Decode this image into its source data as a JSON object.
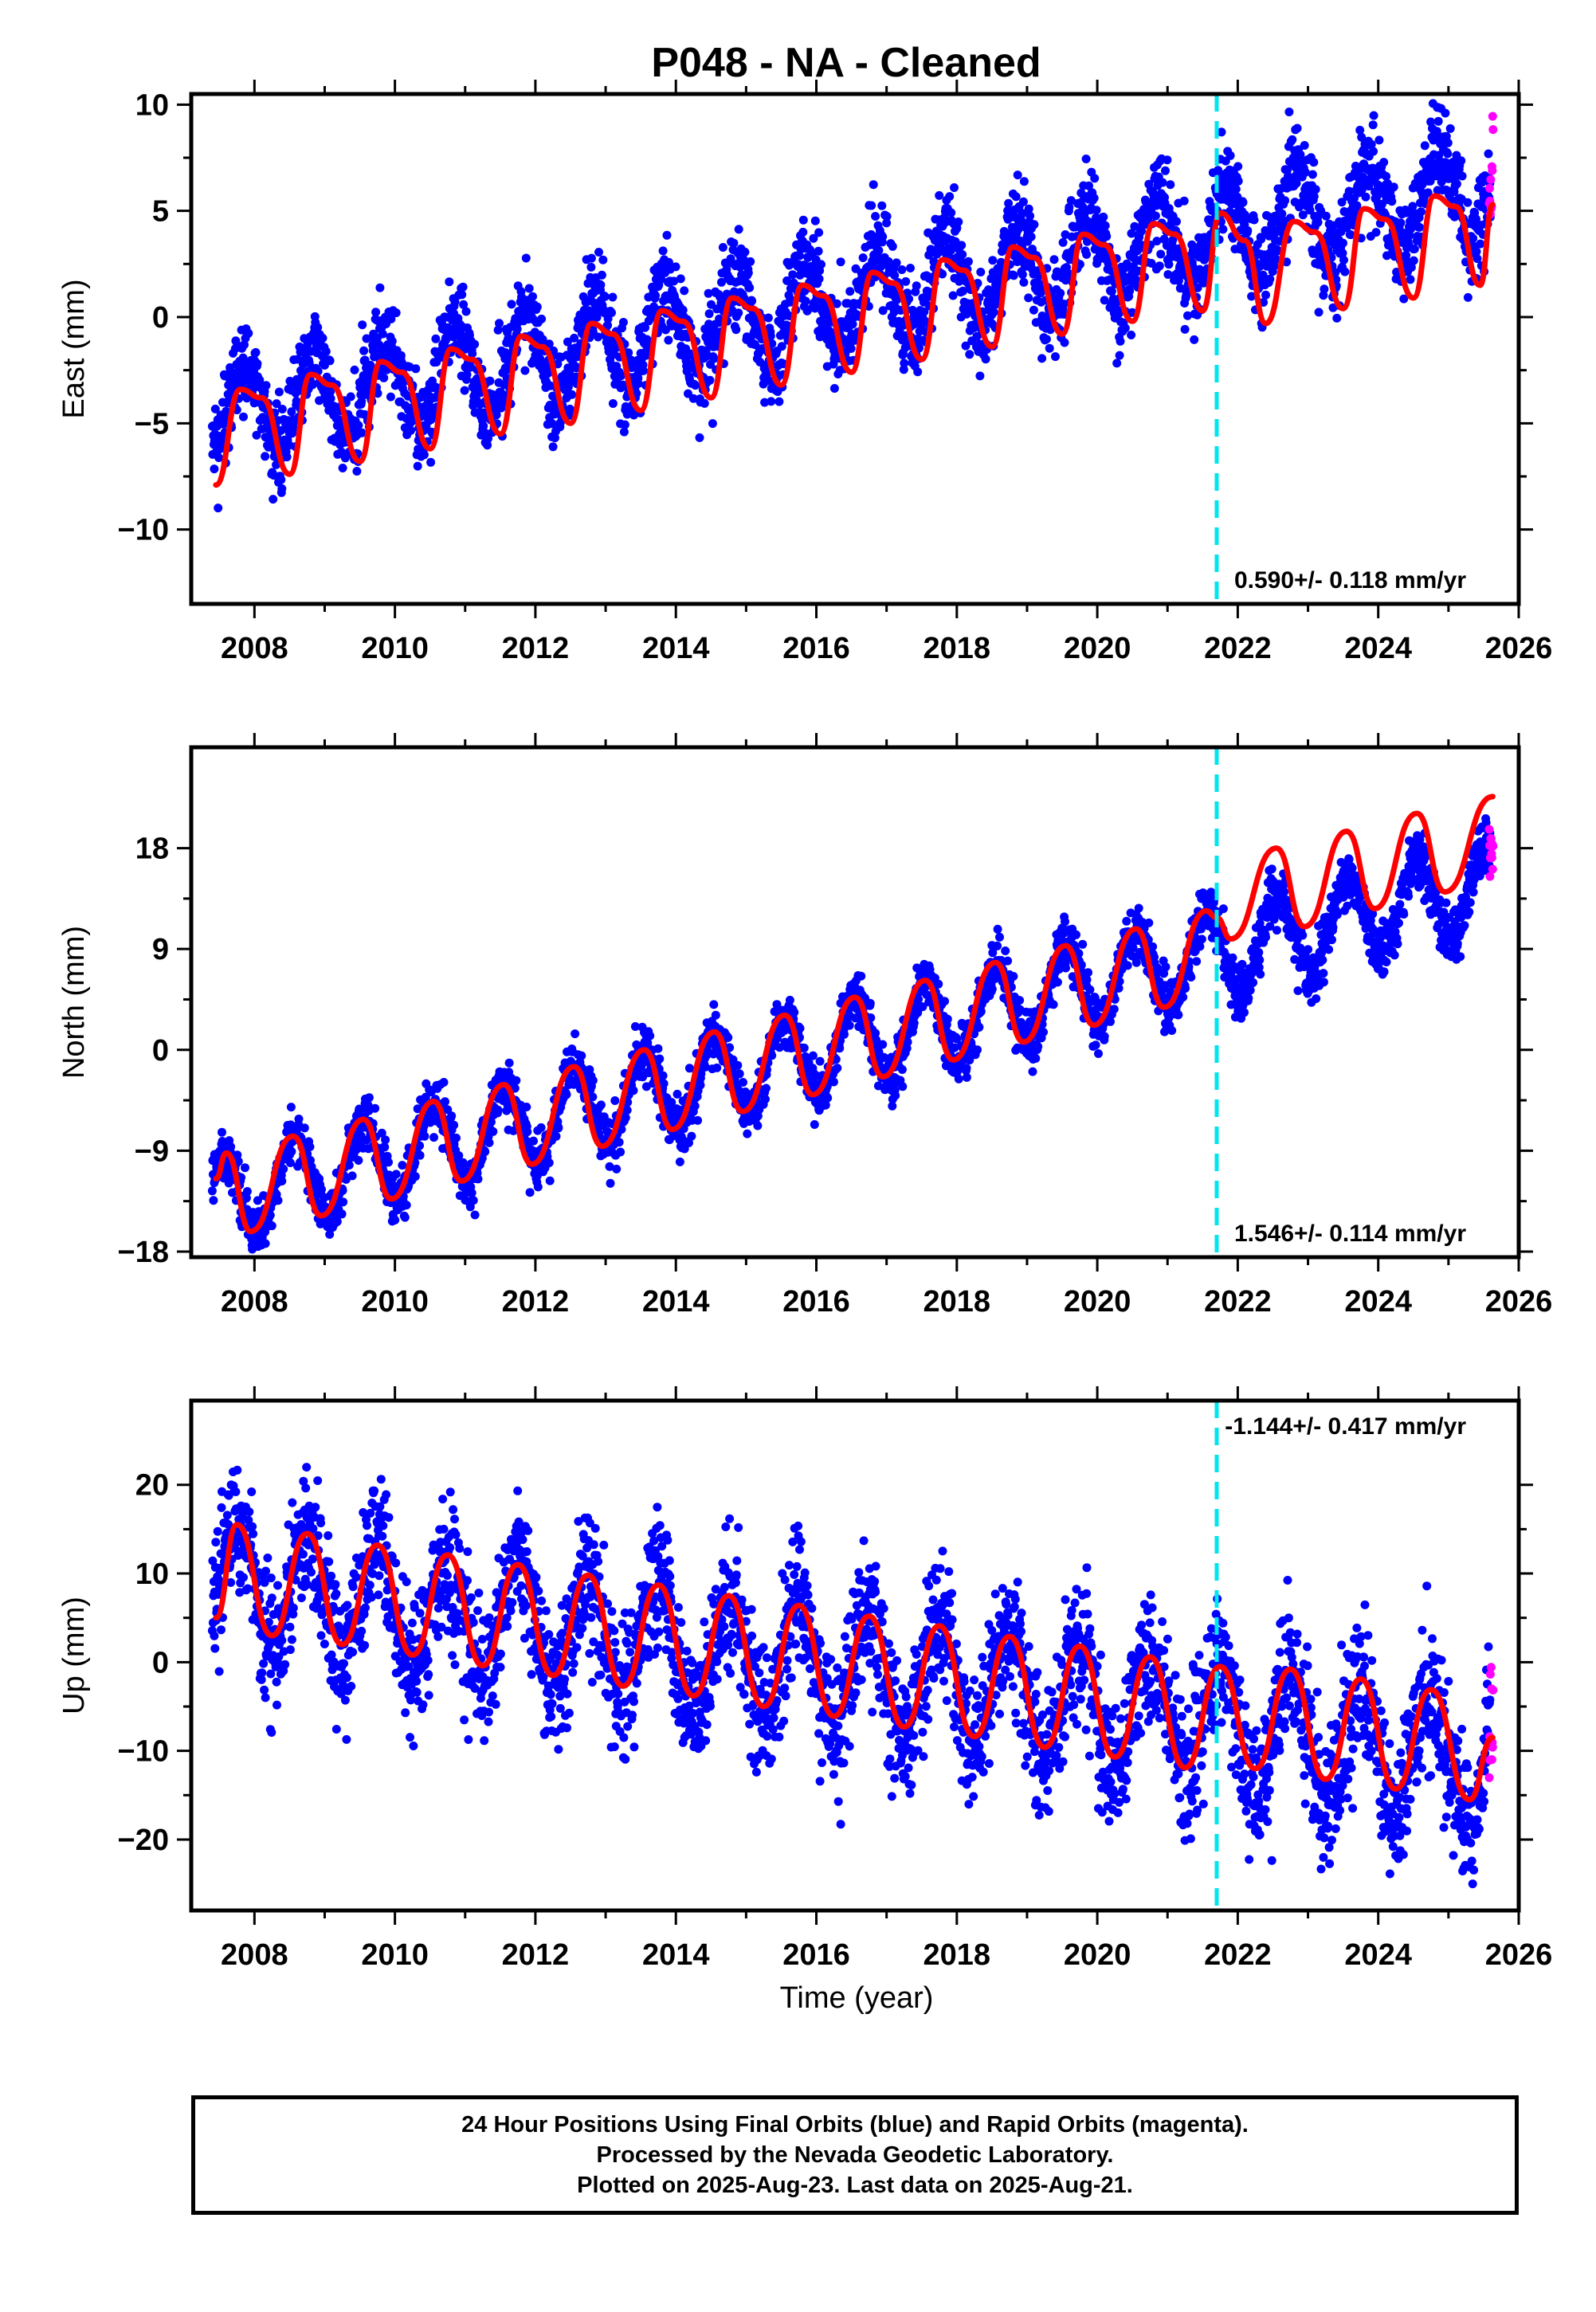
{
  "title": "P048  - NA - Cleaned",
  "x_axis_label": "Time (year)",
  "caption": {
    "line1": "24 Hour Positions Using Final Orbits (blue) and Rapid Orbits (magenta).",
    "line2": "Processed by the Nevada Geodetic Laboratory.",
    "line3": "Plotted on 2025-Aug-23. Last data on 2025-Aug-21."
  },
  "colors": {
    "final_orbits": "#0000ff",
    "rapid_orbits": "#ff00ff",
    "fit": "#ff0000",
    "event_line": "#00e5ee"
  },
  "chart_data": [
    {
      "type": "scatter",
      "panel": "east",
      "ylabel": "East (mm)",
      "xlim": [
        2007.1,
        2026.0
      ],
      "ylim": [
        -13.5,
        10.5
      ],
      "xticks": [
        "2008",
        "2010",
        "2012",
        "2014",
        "2016",
        "2018",
        "2020",
        "2022",
        "2024",
        "2026"
      ],
      "yticks": [
        "10",
        "5",
        "0",
        "−5",
        "−10"
      ],
      "ytick_values": [
        10,
        5,
        0,
        -5,
        -10
      ],
      "rate_label": "0.590+/- 0.118 mm/yr",
      "rate_position": "bottom-right",
      "event_line_x": 2021.7,
      "model": {
        "start_year": 2007.4,
        "end_year": 2025.63,
        "start_value": -4.6,
        "trend_mm_per_yr": 0.59,
        "annual_amplitude": 2.2,
        "annual_peak_year_fraction": 0.85,
        "noise_sigma": 1.1
      },
      "fit_points": [
        [
          2007.45,
          -7.9
        ],
        [
          2007.8,
          -3.4
        ],
        [
          2008.1,
          -3.8
        ],
        [
          2008.5,
          -7.4
        ],
        [
          2008.8,
          -2.7
        ],
        [
          2009.1,
          -3.2
        ],
        [
          2009.5,
          -6.8
        ],
        [
          2009.8,
          -2.1
        ],
        [
          2010.1,
          -2.6
        ],
        [
          2010.5,
          -6.2
        ],
        [
          2010.8,
          -1.5
        ],
        [
          2011.1,
          -2.0
        ],
        [
          2011.5,
          -5.5
        ],
        [
          2011.8,
          -0.9
        ],
        [
          2012.1,
          -1.4
        ],
        [
          2012.5,
          -5.0
        ],
        [
          2012.8,
          -0.3
        ],
        [
          2013.1,
          -0.8
        ],
        [
          2013.5,
          -4.4
        ],
        [
          2013.8,
          0.3
        ],
        [
          2014.1,
          -0.2
        ],
        [
          2014.5,
          -3.8
        ],
        [
          2014.8,
          0.9
        ],
        [
          2015.1,
          0.4
        ],
        [
          2015.5,
          -3.2
        ],
        [
          2015.8,
          1.5
        ],
        [
          2016.1,
          1.0
        ],
        [
          2016.5,
          -2.6
        ],
        [
          2016.8,
          2.1
        ],
        [
          2017.1,
          1.6
        ],
        [
          2017.5,
          -2.0
        ],
        [
          2017.8,
          2.7
        ],
        [
          2018.1,
          2.2
        ],
        [
          2018.5,
          -1.4
        ],
        [
          2018.8,
          3.3
        ],
        [
          2019.1,
          2.8
        ],
        [
          2019.5,
          -0.8
        ],
        [
          2019.8,
          3.9
        ],
        [
          2020.1,
          3.4
        ],
        [
          2020.5,
          -0.2
        ],
        [
          2020.8,
          4.4
        ],
        [
          2021.1,
          3.9
        ],
        [
          2021.5,
          0.3
        ],
        [
          2021.75,
          4.9
        ],
        [
          2022.1,
          3.6
        ],
        [
          2022.4,
          -0.3
        ],
        [
          2022.8,
          4.5
        ],
        [
          2023.1,
          4.0
        ],
        [
          2023.5,
          0.4
        ],
        [
          2023.8,
          5.1
        ],
        [
          2024.1,
          4.6
        ],
        [
          2024.5,
          0.9
        ],
        [
          2024.8,
          5.7
        ],
        [
          2025.1,
          5.2
        ],
        [
          2025.45,
          1.5
        ],
        [
          2025.63,
          5.3
        ]
      ]
    },
    {
      "type": "scatter",
      "panel": "north",
      "ylabel": "North (mm)",
      "xlim": [
        2007.1,
        2026.0
      ],
      "ylim": [
        -18.5,
        27.0
      ],
      "xticks": [
        "2008",
        "2010",
        "2012",
        "2014",
        "2016",
        "2018",
        "2020",
        "2022",
        "2024",
        "2026"
      ],
      "yticks": [
        "18",
        "9",
        "0",
        "−9",
        "−18"
      ],
      "ytick_values": [
        18,
        9,
        0,
        -9,
        -18
      ],
      "rate_label": "1.546+/- 0.114 mm/yr",
      "rate_position": "bottom-right",
      "event_line_x": 2021.7,
      "model": {
        "start_year": 2007.4,
        "end_year": 2025.63,
        "start_value": -13.5,
        "trend_mm_per_yr": 1.546,
        "annual_amplitude": 3.8,
        "annual_peak_year_fraction": 0.55,
        "noise_sigma": 1.2
      },
      "fit_points": [
        [
          2007.45,
          -11.5
        ],
        [
          2007.6,
          -9.2
        ],
        [
          2007.95,
          -16.2
        ],
        [
          2008.55,
          -7.7
        ],
        [
          2008.95,
          -14.8
        ],
        [
          2009.55,
          -6.2
        ],
        [
          2009.95,
          -13.3
        ],
        [
          2010.55,
          -4.6
        ],
        [
          2010.95,
          -11.7
        ],
        [
          2011.55,
          -3.1
        ],
        [
          2011.95,
          -10.2
        ],
        [
          2012.55,
          -1.5
        ],
        [
          2012.95,
          -8.6
        ],
        [
          2013.55,
          0.0
        ],
        [
          2013.95,
          -7.1
        ],
        [
          2014.55,
          1.6
        ],
        [
          2014.95,
          -5.5
        ],
        [
          2015.55,
          3.1
        ],
        [
          2015.95,
          -4.0
        ],
        [
          2016.55,
          4.7
        ],
        [
          2016.95,
          -2.4
        ],
        [
          2017.55,
          6.2
        ],
        [
          2017.95,
          -0.9
        ],
        [
          2018.55,
          7.8
        ],
        [
          2018.95,
          0.7
        ],
        [
          2019.55,
          9.3
        ],
        [
          2019.95,
          2.2
        ],
        [
          2020.55,
          10.8
        ],
        [
          2020.95,
          3.8
        ],
        [
          2021.55,
          12.4
        ],
        [
          2021.7,
          11.8
        ],
        [
          2021.9,
          9.9
        ],
        [
          2022.55,
          18.0
        ],
        [
          2022.95,
          11.0
        ],
        [
          2023.55,
          19.5
        ],
        [
          2023.95,
          12.6
        ],
        [
          2024.55,
          21.1
        ],
        [
          2024.95,
          14.1
        ],
        [
          2025.63,
          22.6
        ]
      ]
    },
    {
      "type": "scatter",
      "panel": "up",
      "ylabel": "Up (mm)",
      "xlim": [
        2007.1,
        2026.0
      ],
      "ylim": [
        -28.0,
        29.5
      ],
      "xticks": [
        "2008",
        "2010",
        "2012",
        "2014",
        "2016",
        "2018",
        "2020",
        "2022",
        "2024",
        "2026"
      ],
      "yticks": [
        "20",
        "10",
        "0",
        "−10",
        "−20"
      ],
      "ytick_values": [
        20,
        10,
        0,
        -10,
        -20
      ],
      "rate_label": "-1.144+/- 0.417 mm/yr",
      "rate_position": "top-right",
      "event_line_x": 2021.7,
      "model": {
        "start_year": 2007.4,
        "end_year": 2025.63,
        "start_value": 9.5,
        "trend_mm_per_yr": -1.144,
        "annual_amplitude": 6.5,
        "annual_peak_year_fraction": 0.75,
        "noise_sigma": 3.8
      },
      "fit_points": [
        [
          2007.45,
          5.0
        ],
        [
          2007.75,
          15.5
        ],
        [
          2008.25,
          3.0
        ],
        [
          2008.75,
          14.5
        ],
        [
          2009.25,
          2.0
        ],
        [
          2009.75,
          13.2
        ],
        [
          2010.25,
          0.8
        ],
        [
          2010.75,
          12.1
        ],
        [
          2011.25,
          -0.4
        ],
        [
          2011.75,
          11.0
        ],
        [
          2012.25,
          -1.5
        ],
        [
          2012.75,
          9.8
        ],
        [
          2013.25,
          -2.7
        ],
        [
          2013.75,
          8.7
        ],
        [
          2014.25,
          -3.8
        ],
        [
          2014.75,
          7.5
        ],
        [
          2015.25,
          -5.0
        ],
        [
          2015.75,
          6.4
        ],
        [
          2016.25,
          -6.1
        ],
        [
          2016.75,
          5.2
        ],
        [
          2017.25,
          -7.3
        ],
        [
          2017.75,
          4.1
        ],
        [
          2018.25,
          -8.4
        ],
        [
          2018.75,
          2.9
        ],
        [
          2019.25,
          -9.6
        ],
        [
          2019.75,
          1.8
        ],
        [
          2020.25,
          -10.7
        ],
        [
          2020.75,
          0.6
        ],
        [
          2021.25,
          -11.9
        ],
        [
          2021.75,
          -0.5
        ],
        [
          2022.25,
          -12.0
        ],
        [
          2022.75,
          -0.8
        ],
        [
          2023.25,
          -13.2
        ],
        [
          2023.75,
          -1.9
        ],
        [
          2024.25,
          -14.3
        ],
        [
          2024.75,
          -3.1
        ],
        [
          2025.3,
          -15.5
        ],
        [
          2025.63,
          -8.5
        ]
      ]
    }
  ]
}
